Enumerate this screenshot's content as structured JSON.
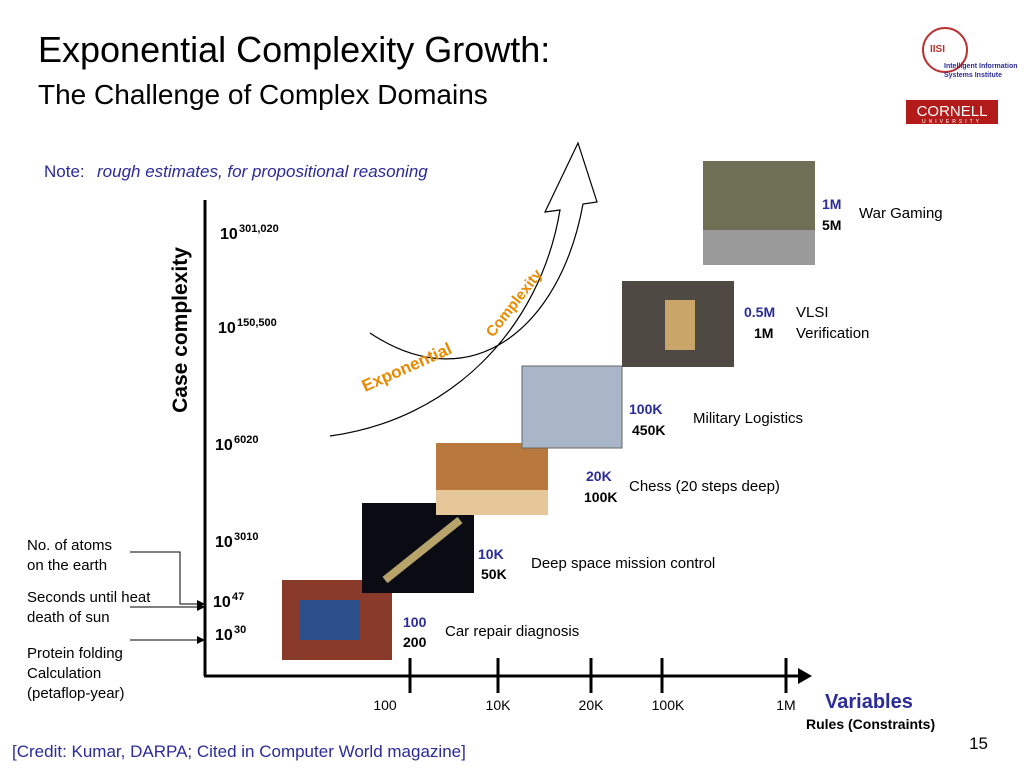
{
  "title": "Exponential Complexity Growth:",
  "subtitle": "The Challenge of Complex Domains",
  "note": {
    "label": "Note:",
    "text": "rough estimates, for propositional reasoning"
  },
  "y_axis_label": "Case complexity",
  "y_levels": [
    {
      "base": "10",
      "exp": "301,020"
    },
    {
      "base": "10",
      "exp": "150,500"
    },
    {
      "base": "10",
      "exp": "6020"
    },
    {
      "base": "10",
      "exp": "3010"
    },
    {
      "base": "10",
      "exp": "47"
    },
    {
      "base": "10",
      "exp": "30"
    }
  ],
  "x_ticks": [
    "100",
    "10K",
    "20K",
    "100K",
    "1M"
  ],
  "x_axis_label": "Variables",
  "x_axis_sublabel": "Rules (Constraints)",
  "arrow_labels": [
    "Exponential",
    "Complexity"
  ],
  "left_notes": [
    {
      "lines": [
        "No. of atoms",
        "on the earth"
      ]
    },
    {
      "lines": [
        "Seconds until heat",
        "death of sun"
      ]
    },
    {
      "lines": [
        "Protein folding",
        "Calculation",
        "(petaflop-year)"
      ]
    }
  ],
  "domains": [
    {
      "variables": "100",
      "rules": "200",
      "name": [
        "Car repair diagnosis"
      ]
    },
    {
      "variables": "10K",
      "rules": "50K",
      "name": [
        "Deep space mission control"
      ]
    },
    {
      "variables": "20K",
      "rules": "100K",
      "name": [
        "Chess (20 steps deep)"
      ]
    },
    {
      "variables": "100K",
      "rules": "450K",
      "name": [
        "Military Logistics"
      ]
    },
    {
      "variables": "0.5M",
      "rules": "1M",
      "name": [
        "VLSI",
        "Verification"
      ]
    },
    {
      "variables": "1M",
      "rules": "5M",
      "name": [
        "War Gaming"
      ]
    }
  ],
  "logo": {
    "mark": "IISI",
    "lines": [
      "Intelligent Information",
      "Systems Institute"
    ],
    "cornell": "CORNELL",
    "university": "UNIVERSITY"
  },
  "credit": "[Credit: Kumar, DARPA;  Cited in Computer World magazine]",
  "page_number": "15"
}
